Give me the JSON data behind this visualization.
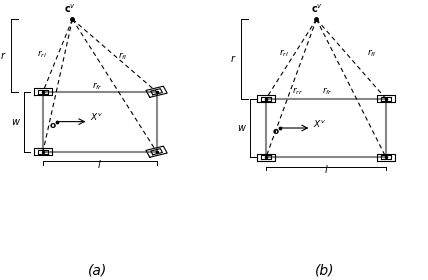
{
  "fig_width": 4.28,
  "fig_height": 2.8,
  "dpi": 100,
  "bg_color": "#ffffff",
  "line_color": "#000000",
  "gray_color": "#888888"
}
